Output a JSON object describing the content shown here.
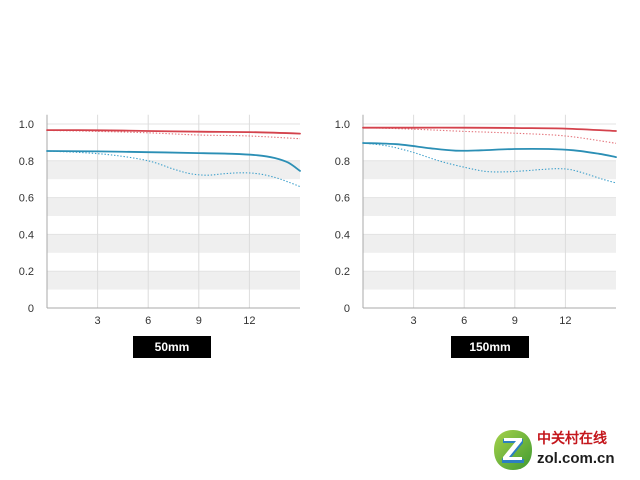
{
  "chart_data": [
    {
      "type": "line",
      "caption": "50mm",
      "title": "",
      "xlabel": "",
      "ylabel": "",
      "xlim": [
        0,
        15
      ],
      "ylim": [
        0,
        1.05
      ],
      "grid": true,
      "shaded_bands": [
        [
          0.7,
          0.8
        ],
        [
          0.5,
          0.6
        ],
        [
          0.3,
          0.4
        ],
        [
          0.1,
          0.2
        ]
      ],
      "x_ticks": [
        {
          "value": 3,
          "label": "3"
        },
        {
          "value": 6,
          "label": "6"
        },
        {
          "value": 9,
          "label": "9"
        },
        {
          "value": 12,
          "label": "12"
        }
      ],
      "y_ticks": [
        {
          "value": 1.0,
          "label": "1.0"
        },
        {
          "value": 0.8,
          "label": "0.8"
        },
        {
          "value": 0.6,
          "label": "0.6"
        },
        {
          "value": 0.4,
          "label": "0.4"
        },
        {
          "value": 0.2,
          "label": "0.2"
        },
        {
          "value": 0,
          "label": "0"
        }
      ],
      "series": [
        {
          "color": "#e4747c",
          "style": "dotted",
          "points": [
            [
              0,
              0.965
            ],
            [
              3,
              0.96
            ],
            [
              6,
              0.952
            ],
            [
              9,
              0.94
            ],
            [
              12,
              0.935
            ],
            [
              15,
              0.92
            ]
          ]
        },
        {
          "color": "#3ea0cb",
          "style": "dotted",
          "points": [
            [
              0,
              0.853
            ],
            [
              2,
              0.845
            ],
            [
              4,
              0.83
            ],
            [
              6,
              0.8
            ],
            [
              7.5,
              0.755
            ],
            [
              8.5,
              0.73
            ],
            [
              9.5,
              0.722
            ],
            [
              10.5,
              0.73
            ],
            [
              11.5,
              0.735
            ],
            [
              12.5,
              0.73
            ],
            [
              13.5,
              0.71
            ],
            [
              14.3,
              0.685
            ],
            [
              15,
              0.66
            ]
          ]
        },
        {
          "color": "#d4424c",
          "style": "solid",
          "points": [
            [
              0,
              0.967
            ],
            [
              3,
              0.966
            ],
            [
              6,
              0.962
            ],
            [
              9,
              0.958
            ],
            [
              12,
              0.956
            ],
            [
              15,
              0.948
            ]
          ]
        },
        {
          "color": "#2b8fb5",
          "style": "solid",
          "points": [
            [
              0,
              0.853
            ],
            [
              3,
              0.851
            ],
            [
              6,
              0.847
            ],
            [
              9,
              0.842
            ],
            [
              11,
              0.838
            ],
            [
              12.5,
              0.83
            ],
            [
              13.5,
              0.815
            ],
            [
              14.3,
              0.79
            ],
            [
              15,
              0.745
            ]
          ]
        }
      ]
    },
    {
      "type": "line",
      "caption": "150mm",
      "title": "",
      "xlabel": "",
      "ylabel": "",
      "xlim": [
        0,
        15
      ],
      "ylim": [
        0,
        1.05
      ],
      "grid": true,
      "shaded_bands": [
        [
          0.7,
          0.8
        ],
        [
          0.5,
          0.6
        ],
        [
          0.3,
          0.4
        ],
        [
          0.1,
          0.2
        ]
      ],
      "x_ticks": [
        {
          "value": 3,
          "label": "3"
        },
        {
          "value": 6,
          "label": "6"
        },
        {
          "value": 9,
          "label": "9"
        },
        {
          "value": 12,
          "label": "12"
        }
      ],
      "y_ticks": [
        {
          "value": 1.0,
          "label": "1.0"
        },
        {
          "value": 0.8,
          "label": "0.8"
        },
        {
          "value": 0.6,
          "label": "0.6"
        },
        {
          "value": 0.4,
          "label": "0.4"
        },
        {
          "value": 0.2,
          "label": "0.2"
        },
        {
          "value": 0,
          "label": "0"
        }
      ],
      "series": [
        {
          "color": "#e4747c",
          "style": "dotted",
          "points": [
            [
              0,
              0.98
            ],
            [
              3,
              0.972
            ],
            [
              6,
              0.96
            ],
            [
              9,
              0.95
            ],
            [
              12,
              0.935
            ],
            [
              15,
              0.895
            ]
          ]
        },
        {
          "color": "#3ea0cb",
          "style": "dotted",
          "points": [
            [
              0,
              0.897
            ],
            [
              1.5,
              0.88
            ],
            [
              3,
              0.845
            ],
            [
              4.5,
              0.8
            ],
            [
              6,
              0.765
            ],
            [
              7.3,
              0.742
            ],
            [
              8.5,
              0.74
            ],
            [
              9.5,
              0.745
            ],
            [
              10.5,
              0.752
            ],
            [
              11.5,
              0.757
            ],
            [
              12.3,
              0.752
            ],
            [
              13.2,
              0.73
            ],
            [
              14.2,
              0.7
            ],
            [
              15,
              0.68
            ]
          ]
        },
        {
          "color": "#d4424c",
          "style": "solid",
          "points": [
            [
              0,
              0.98
            ],
            [
              3,
              0.98
            ],
            [
              6,
              0.98
            ],
            [
              9,
              0.978
            ],
            [
              12,
              0.975
            ],
            [
              15,
              0.962
            ]
          ]
        },
        {
          "color": "#2b8fb5",
          "style": "solid",
          "points": [
            [
              0,
              0.897
            ],
            [
              2,
              0.89
            ],
            [
              4,
              0.868
            ],
            [
              5.5,
              0.855
            ],
            [
              7,
              0.857
            ],
            [
              9,
              0.864
            ],
            [
              11,
              0.864
            ],
            [
              12.5,
              0.857
            ],
            [
              14,
              0.838
            ],
            [
              15,
              0.82
            ]
          ]
        }
      ]
    }
  ],
  "watermark": {
    "name": "中关村在线",
    "domain": "zol.com.cn",
    "logo_icon": "zol-z-logo-icon",
    "name_color": "#c4161c"
  }
}
